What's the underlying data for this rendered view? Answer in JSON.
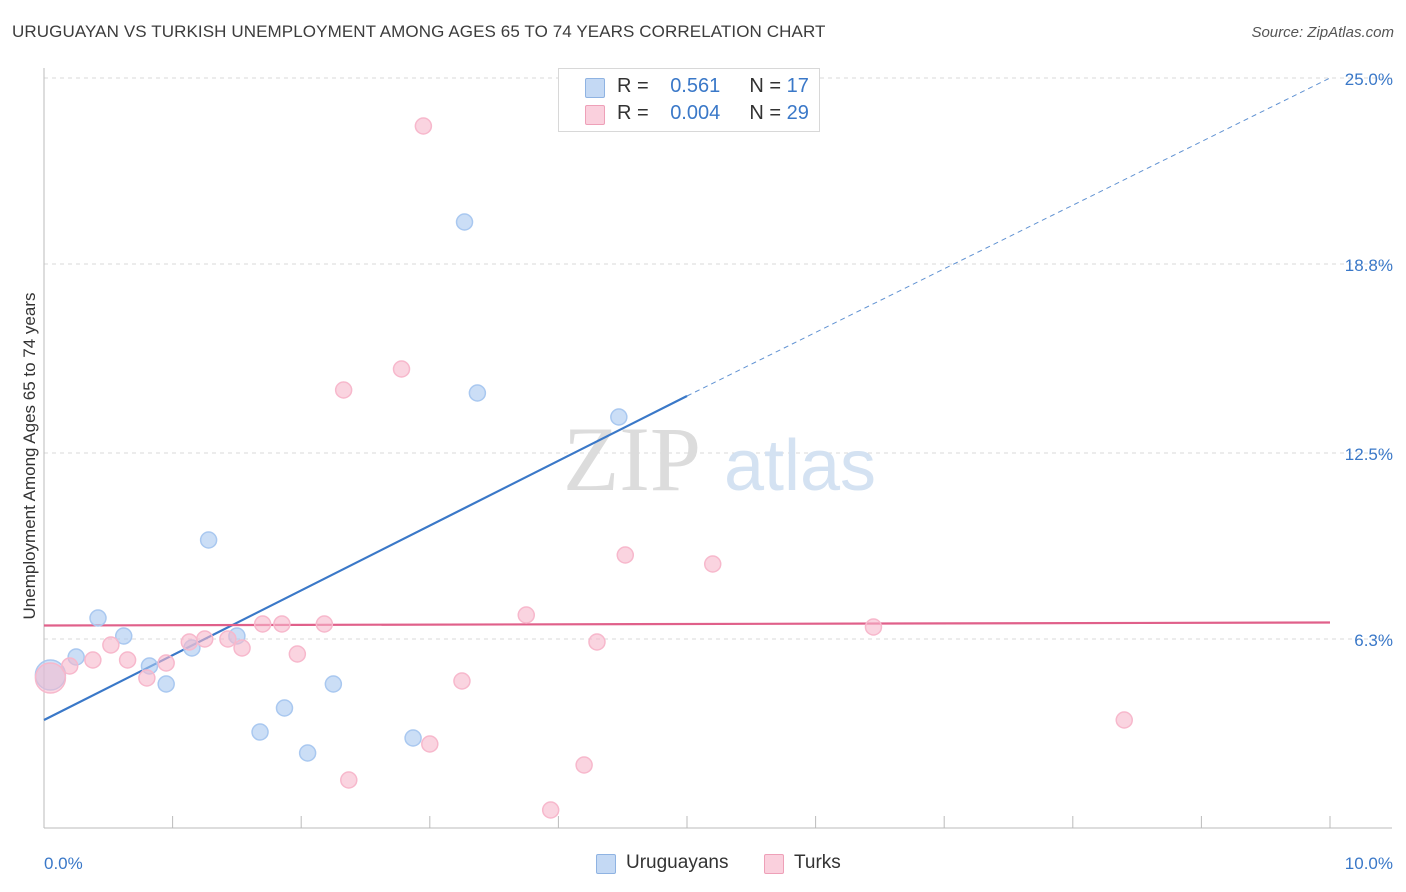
{
  "title": "URUGUAYAN VS TURKISH UNEMPLOYMENT AMONG AGES 65 TO 74 YEARS CORRELATION CHART",
  "source": "Source: ZipAtlas.com",
  "watermark": {
    "zip": "ZIP",
    "atlas": "atlas"
  },
  "legend_top": {
    "rows": [
      {
        "r_label": "R =",
        "r_value": "0.561",
        "n_label": "N =",
        "n_value": "17",
        "color": "#a9c8f0"
      },
      {
        "r_label": "R =",
        "r_value": "0.004",
        "n_label": "N =",
        "n_value": "29",
        "color": "#f7b8cc"
      }
    ]
  },
  "legend_bottom": [
    {
      "label": "Uruguayans",
      "color": "#a9c8f0"
    },
    {
      "label": "Turks",
      "color": "#f7b8cc"
    }
  ],
  "chart_data": {
    "type": "scatter",
    "title": "URUGUAYAN VS TURKISH UNEMPLOYMENT AMONG AGES 65 TO 74 YEARS CORRELATION CHART",
    "xlabel": "",
    "ylabel": "Unemployment Among Ages 65 to 74 years",
    "xlim": [
      0,
      10
    ],
    "ylim": [
      0,
      25
    ],
    "x_tick_labels": [
      {
        "value": 0,
        "label": "0.0%"
      },
      {
        "value": 10,
        "label": "10.0%"
      }
    ],
    "y_tick_labels": [
      {
        "value": 6.3,
        "label": "6.3%"
      },
      {
        "value": 12.5,
        "label": "12.5%"
      },
      {
        "value": 18.8,
        "label": "18.8%"
      },
      {
        "value": 25.0,
        "label": "25.0%"
      }
    ],
    "grid": true,
    "legend_placement": "top-center",
    "series": [
      {
        "name": "Uruguayans",
        "color": "#3a78c8",
        "fill": "#a9c8f0",
        "points": [
          {
            "x": 0.05,
            "y": 5.1,
            "big": true
          },
          {
            "x": 0.25,
            "y": 5.7
          },
          {
            "x": 0.42,
            "y": 7.0
          },
          {
            "x": 0.62,
            "y": 6.4
          },
          {
            "x": 0.82,
            "y": 5.4
          },
          {
            "x": 0.95,
            "y": 4.8
          },
          {
            "x": 1.15,
            "y": 6.0
          },
          {
            "x": 1.28,
            "y": 9.6
          },
          {
            "x": 1.5,
            "y": 6.4
          },
          {
            "x": 1.68,
            "y": 3.2
          },
          {
            "x": 1.87,
            "y": 4.0
          },
          {
            "x": 2.05,
            "y": 2.5
          },
          {
            "x": 2.25,
            "y": 4.8
          },
          {
            "x": 2.87,
            "y": 3.0
          },
          {
            "x": 3.27,
            "y": 20.2
          },
          {
            "x": 3.37,
            "y": 14.5
          },
          {
            "x": 4.47,
            "y": 13.7
          }
        ],
        "trend": {
          "x0": 0,
          "y0": 3.6,
          "x1": 5.0,
          "y1": 14.4,
          "dash_x1": 10.0,
          "dash_y1": 25.0
        }
      },
      {
        "name": "Turks",
        "color": "#e0608a",
        "fill": "#f7b8cc",
        "points": [
          {
            "x": 0.05,
            "y": 5.0,
            "big": true
          },
          {
            "x": 0.2,
            "y": 5.4
          },
          {
            "x": 0.38,
            "y": 5.6
          },
          {
            "x": 0.52,
            "y": 6.1
          },
          {
            "x": 0.65,
            "y": 5.6
          },
          {
            "x": 0.8,
            "y": 5.0
          },
          {
            "x": 0.95,
            "y": 5.5
          },
          {
            "x": 1.13,
            "y": 6.2
          },
          {
            "x": 1.25,
            "y": 6.3
          },
          {
            "x": 1.43,
            "y": 6.3
          },
          {
            "x": 1.54,
            "y": 6.0
          },
          {
            "x": 1.7,
            "y": 6.8
          },
          {
            "x": 1.85,
            "y": 6.8
          },
          {
            "x": 1.97,
            "y": 5.8
          },
          {
            "x": 2.18,
            "y": 6.8
          },
          {
            "x": 2.33,
            "y": 14.6
          },
          {
            "x": 2.37,
            "y": 1.6
          },
          {
            "x": 2.78,
            "y": 15.3
          },
          {
            "x": 2.95,
            "y": 23.4
          },
          {
            "x": 3.0,
            "y": 2.8
          },
          {
            "x": 3.25,
            "y": 4.9
          },
          {
            "x": 3.75,
            "y": 7.1
          },
          {
            "x": 3.94,
            "y": 0.6
          },
          {
            "x": 4.2,
            "y": 2.1
          },
          {
            "x": 4.3,
            "y": 6.2
          },
          {
            "x": 4.52,
            "y": 9.1
          },
          {
            "x": 5.2,
            "y": 8.8
          },
          {
            "x": 6.45,
            "y": 6.7
          },
          {
            "x": 8.4,
            "y": 3.6
          }
        ],
        "trend": {
          "x0": 0,
          "y0": 6.75,
          "x1": 10.0,
          "y1": 6.85
        }
      }
    ]
  }
}
